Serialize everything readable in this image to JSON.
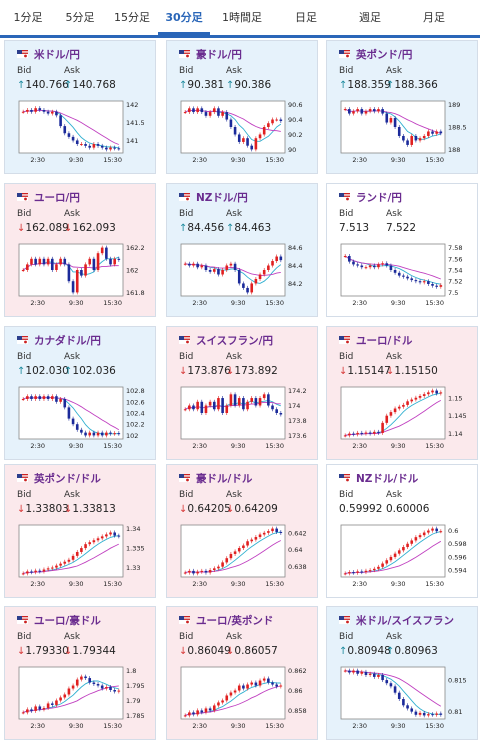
{
  "tabs": [
    "1分足",
    "5分足",
    "15分足",
    "30分足",
    "1時間足",
    "日足",
    "週足",
    "月足"
  ],
  "active_tab": "30分足",
  "bid_label": "Bid",
  "ask_label": "Ask",
  "cards": [
    {
      "name": "米ドル/円",
      "flag": "us-jp-flag-icon",
      "bid": "140.766",
      "ask": "140.768",
      "dir": "up",
      "bg": "up",
      "yticks": [
        "142",
        "141.5",
        "141"
      ],
      "xticks": [
        "2:30",
        "9:30",
        "15:30"
      ]
    },
    {
      "name": "豪ドル/円",
      "flag": "au-jp-flag-icon",
      "bid": "90.381",
      "ask": "90.386",
      "dir": "up",
      "bg": "up",
      "yticks": [
        "90.6",
        "90.4",
        "90.2",
        "90"
      ],
      "xticks": [
        "2:30",
        "9:30",
        "15:30"
      ]
    },
    {
      "name": "英ポンド/円",
      "flag": "gb-jp-flag-icon",
      "bid": "188.359",
      "ask": "188.366",
      "dir": "up",
      "bg": "up",
      "yticks": [
        "189",
        "188.5",
        "188"
      ],
      "xticks": [
        "2:30",
        "9:30",
        "15:30"
      ]
    },
    {
      "name": "ユーロ/円",
      "flag": "eu-jp-flag-icon",
      "bid": "162.089",
      "ask": "162.093",
      "dir": "down",
      "bg": "down",
      "yticks": [
        "162.2",
        "162",
        "161.8"
      ],
      "xticks": [
        "2:30",
        "9:30",
        "15:30"
      ]
    },
    {
      "name": "NZドル/円",
      "flag": "nz-jp-flag-icon",
      "bid": "84.456",
      "ask": "84.463",
      "dir": "up",
      "bg": "up",
      "yticks": [
        "84.6",
        "84.4",
        "84.2"
      ],
      "xticks": [
        "2:30",
        "9:30",
        "15:30"
      ]
    },
    {
      "name": "ランド/円",
      "flag": "za-jp-flag-icon",
      "bid": "7.513",
      "ask": "7.522",
      "dir": "none",
      "bg": "neutral",
      "yticks": [
        "7.58",
        "7.56",
        "7.54",
        "7.52",
        "7.5"
      ],
      "xticks": [
        "2:30",
        "9:30",
        "15:30"
      ]
    },
    {
      "name": "カナダドル/円",
      "flag": "ca-jp-flag-icon",
      "bid": "102.030",
      "ask": "102.036",
      "dir": "up",
      "bg": "up",
      "yticks": [
        "102.8",
        "102.6",
        "102.4",
        "102.2",
        "102"
      ],
      "xticks": [
        "2:30",
        "9:30",
        "15:30"
      ]
    },
    {
      "name": "スイスフラン/円",
      "flag": "ch-jp-flag-icon",
      "bid": "173.876",
      "ask": "173.892",
      "dir": "down",
      "bg": "down",
      "yticks": [
        "174.2",
        "174",
        "173.8",
        "173.6"
      ],
      "xticks": [
        "2:30",
        "9:30",
        "15:30"
      ]
    },
    {
      "name": "ユーロ/ドル",
      "flag": "eu-us-flag-icon",
      "bid": "1.15147",
      "ask": "1.15150",
      "dir": "down",
      "bg": "down",
      "yticks": [
        "1.15",
        "1.145",
        "1.14"
      ],
      "xticks": [
        "2:30",
        "9:30",
        "15:30"
      ]
    },
    {
      "name": "英ポンド/ドル",
      "flag": "gb-us-flag-icon",
      "bid": "1.33803",
      "ask": "1.33813",
      "dir": "down",
      "bg": "down",
      "yticks": [
        "1.34",
        "1.335",
        "1.33"
      ],
      "xticks": [
        "2:30",
        "9:30",
        "15:30"
      ]
    },
    {
      "name": "豪ドル/ドル",
      "flag": "au-us-flag-icon",
      "bid": "0.64205",
      "ask": "0.64209",
      "dir": "down",
      "bg": "down",
      "yticks": [
        "0.642",
        "0.64",
        "0.638"
      ],
      "xticks": [
        "2:30",
        "9:30",
        "15:30"
      ]
    },
    {
      "name": "NZドル/ドル",
      "flag": "nz-us-flag-icon",
      "bid": "0.59992",
      "ask": "0.60006",
      "dir": "none",
      "bg": "neutral",
      "yticks": [
        "0.6",
        "0.598",
        "0.596",
        "0.594"
      ],
      "xticks": [
        "2:30",
        "9:30",
        "15:30"
      ]
    },
    {
      "name": "ユーロ/豪ドル",
      "flag": "eu-au-flag-icon",
      "bid": "1.79330",
      "ask": "1.79344",
      "dir": "down",
      "bg": "down",
      "yticks": [
        "1.8",
        "1.795",
        "1.79",
        "1.785"
      ],
      "xticks": [
        "2:30",
        "9:30",
        "15:30"
      ]
    },
    {
      "name": "ユーロ/英ポンド",
      "flag": "eu-gb-flag-icon",
      "bid": "0.86049",
      "ask": "0.86057",
      "dir": "down",
      "bg": "down",
      "yticks": [
        "0.862",
        "0.86",
        "0.858"
      ],
      "xticks": [
        "2:30",
        "9:30",
        "15:30"
      ]
    },
    {
      "name": "米ドル/スイスフラン",
      "flag": "us-ch-flag-icon",
      "bid": "0.80948",
      "ask": "0.80963",
      "dir": "up",
      "bg": "up",
      "yticks": [
        "0.815",
        "0.81"
      ],
      "xticks": [
        "2:30",
        "9:30",
        "15:30"
      ]
    }
  ],
  "colors": {
    "up": "#1d8a9e",
    "down": "#d83a3a",
    "candle_up": "#e02020",
    "candle_down": "#1b2a9a",
    "ma1": "#c040c0",
    "ma2": "#30b0d0"
  },
  "chart_data": [
    {
      "type": "line",
      "x": [
        0,
        1,
        2,
        3,
        4,
        5,
        6,
        7,
        8,
        9,
        10,
        11,
        12,
        13,
        14,
        15,
        16,
        17,
        18,
        19,
        20,
        21,
        22,
        23
      ],
      "series": [
        {
          "values": [
            141.8,
            141.85,
            141.8,
            141.9,
            141.85,
            141.8,
            141.75,
            141.8,
            141.7,
            141.4,
            141.2,
            141.1,
            141.0,
            140.9,
            140.9,
            140.85,
            140.8,
            140.9,
            140.85,
            140.8,
            140.75,
            140.8,
            140.78,
            140.77
          ]
        }
      ]
    },
    {
      "type": "line",
      "x": [
        0,
        1,
        2,
        3,
        4,
        5,
        6,
        7,
        8,
        9,
        10,
        11,
        12,
        13,
        14,
        15,
        16,
        17,
        18,
        19,
        20,
        21,
        22,
        23
      ],
      "series": [
        {
          "values": [
            90.5,
            90.55,
            90.5,
            90.55,
            90.5,
            90.45,
            90.5,
            90.55,
            90.45,
            90.5,
            90.4,
            90.3,
            90.2,
            90.1,
            90.15,
            90.05,
            90.0,
            90.15,
            90.2,
            90.3,
            90.35,
            90.4,
            90.4,
            90.38
          ]
        }
      ]
    },
    {
      "type": "line",
      "x": [
        0,
        1,
        2,
        3,
        4,
        5,
        6,
        7,
        8,
        9,
        10,
        11,
        12,
        13,
        14,
        15,
        16,
        17,
        18,
        19,
        20,
        21,
        22,
        23
      ],
      "series": [
        {
          "values": [
            188.9,
            188.8,
            188.85,
            188.9,
            188.8,
            188.85,
            188.9,
            188.85,
            188.9,
            188.8,
            188.6,
            188.7,
            188.5,
            188.3,
            188.2,
            188.1,
            188.3,
            188.2,
            188.25,
            188.3,
            188.4,
            188.35,
            188.4,
            188.36
          ]
        }
      ]
    },
    {
      "type": "line",
      "x": [
        0,
        1,
        2,
        3,
        4,
        5,
        6,
        7,
        8,
        9,
        10,
        11,
        12,
        13,
        14,
        15,
        16,
        17,
        18,
        19,
        20,
        21,
        22,
        23
      ],
      "series": [
        {
          "values": [
            162.0,
            162.05,
            162.1,
            162.05,
            162.1,
            162.05,
            162.1,
            162.0,
            162.05,
            162.1,
            162.05,
            161.9,
            161.8,
            162.0,
            161.95,
            162.05,
            162.1,
            162.0,
            162.15,
            162.2,
            162.1,
            162.05,
            162.1,
            162.09
          ]
        }
      ]
    },
    {
      "type": "line",
      "x": [
        0,
        1,
        2,
        3,
        4,
        5,
        6,
        7,
        8,
        9,
        10,
        11,
        12,
        13,
        14,
        15,
        16,
        17,
        18,
        19,
        20,
        21,
        22,
        23
      ],
      "series": [
        {
          "values": [
            84.42,
            84.4,
            84.42,
            84.38,
            84.4,
            84.35,
            84.33,
            84.36,
            84.3,
            84.35,
            84.4,
            84.42,
            84.35,
            84.2,
            84.15,
            84.1,
            84.2,
            84.25,
            84.3,
            84.35,
            84.4,
            84.45,
            84.5,
            84.46
          ]
        }
      ]
    },
    {
      "type": "line",
      "x": [
        0,
        1,
        2,
        3,
        4,
        5,
        6,
        7,
        8,
        9,
        10,
        11,
        12,
        13,
        14,
        15,
        16,
        17,
        18,
        19,
        20,
        21,
        22,
        23
      ],
      "series": [
        {
          "values": [
            7.565,
            7.555,
            7.55,
            7.548,
            7.545,
            7.545,
            7.548,
            7.545,
            7.55,
            7.552,
            7.548,
            7.54,
            7.535,
            7.53,
            7.528,
            7.525,
            7.522,
            7.52,
            7.518,
            7.52,
            7.515,
            7.512,
            7.51,
            7.513
          ]
        }
      ]
    },
    {
      "type": "line",
      "x": [
        0,
        1,
        2,
        3,
        4,
        5,
        6,
        7,
        8,
        9,
        10,
        11,
        12,
        13,
        14,
        15,
        16,
        17,
        18,
        19,
        20,
        21,
        22,
        23
      ],
      "series": [
        {
          "values": [
            102.65,
            102.7,
            102.65,
            102.7,
            102.65,
            102.7,
            102.65,
            102.7,
            102.6,
            102.65,
            102.5,
            102.3,
            102.2,
            102.1,
            102.05,
            102.0,
            102.05,
            102.0,
            102.05,
            102.0,
            102.05,
            102.03,
            102.04,
            102.03
          ]
        }
      ]
    },
    {
      "type": "line",
      "x": [
        0,
        1,
        2,
        3,
        4,
        5,
        6,
        7,
        8,
        9,
        10,
        11,
        12,
        13,
        14,
        15,
        16,
        17,
        18,
        19,
        20,
        21,
        22,
        23
      ],
      "series": [
        {
          "values": [
            173.95,
            174.0,
            173.95,
            174.05,
            173.9,
            174.0,
            174.05,
            173.95,
            174.1,
            173.9,
            174.0,
            174.15,
            174.0,
            174.1,
            173.95,
            174.05,
            174.1,
            174.0,
            174.1,
            174.15,
            174.0,
            173.95,
            173.9,
            173.88
          ]
        }
      ]
    },
    {
      "type": "line",
      "x": [
        0,
        1,
        2,
        3,
        4,
        5,
        6,
        7,
        8,
        9,
        10,
        11,
        12,
        13,
        14,
        15,
        16,
        17,
        18,
        19,
        20,
        21,
        22,
        23
      ],
      "series": [
        {
          "values": [
            1.1395,
            1.14,
            1.1398,
            1.1402,
            1.14,
            1.1403,
            1.14,
            1.1405,
            1.1402,
            1.143,
            1.145,
            1.146,
            1.147,
            1.1475,
            1.148,
            1.149,
            1.1495,
            1.15,
            1.1505,
            1.151,
            1.1515,
            1.152,
            1.1512,
            1.1515
          ]
        }
      ]
    },
    {
      "type": "line",
      "x": [
        0,
        1,
        2,
        3,
        4,
        5,
        6,
        7,
        8,
        9,
        10,
        11,
        12,
        13,
        14,
        15,
        16,
        17,
        18,
        19,
        20,
        21,
        22,
        23
      ],
      "series": [
        {
          "values": [
            1.3285,
            1.329,
            1.3288,
            1.3292,
            1.329,
            1.3295,
            1.3298,
            1.33,
            1.3305,
            1.331,
            1.3315,
            1.332,
            1.333,
            1.334,
            1.335,
            1.336,
            1.3365,
            1.337,
            1.3375,
            1.338,
            1.3385,
            1.339,
            1.3382,
            1.338
          ]
        }
      ]
    },
    {
      "type": "line",
      "x": [
        0,
        1,
        2,
        3,
        4,
        5,
        6,
        7,
        8,
        9,
        10,
        11,
        12,
        13,
        14,
        15,
        16,
        17,
        18,
        19,
        20,
        21,
        22,
        23
      ],
      "series": [
        {
          "values": [
            0.6373,
            0.6375,
            0.6372,
            0.6374,
            0.6375,
            0.6373,
            0.6376,
            0.6378,
            0.638,
            0.6385,
            0.639,
            0.6395,
            0.6398,
            0.6402,
            0.6405,
            0.641,
            0.6412,
            0.6415,
            0.6418,
            0.642,
            0.6422,
            0.6425,
            0.6421,
            0.642
          ]
        }
      ]
    },
    {
      "type": "line",
      "x": [
        0,
        1,
        2,
        3,
        4,
        5,
        6,
        7,
        8,
        9,
        10,
        11,
        12,
        13,
        14,
        15,
        16,
        17,
        18,
        19,
        20,
        21,
        22,
        23
      ],
      "series": [
        {
          "values": [
            0.5935,
            0.5937,
            0.5936,
            0.5938,
            0.5937,
            0.5939,
            0.594,
            0.5942,
            0.5945,
            0.595,
            0.5955,
            0.596,
            0.5965,
            0.597,
            0.5975,
            0.598,
            0.5985,
            0.599,
            0.5993,
            0.5997,
            0.6,
            0.6003,
            0.5999,
            0.5999
          ]
        }
      ]
    },
    {
      "type": "line",
      "x": [
        0,
        1,
        2,
        3,
        4,
        5,
        6,
        7,
        8,
        9,
        10,
        11,
        12,
        13,
        14,
        15,
        16,
        17,
        18,
        19,
        20,
        21,
        22,
        23
      ],
      "series": [
        {
          "values": [
            1.786,
            1.787,
            1.7865,
            1.788,
            1.787,
            1.7875,
            1.789,
            1.7885,
            1.79,
            1.791,
            1.792,
            1.794,
            1.795,
            1.797,
            1.798,
            1.7975,
            1.796,
            1.7955,
            1.795,
            1.794,
            1.7945,
            1.7935,
            1.793,
            1.7933
          ]
        }
      ]
    },
    {
      "type": "line",
      "x": [
        0,
        1,
        2,
        3,
        4,
        5,
        6,
        7,
        8,
        9,
        10,
        11,
        12,
        13,
        14,
        15,
        16,
        17,
        18,
        19,
        20,
        21,
        22,
        23
      ],
      "series": [
        {
          "values": [
            0.8575,
            0.8578,
            0.8576,
            0.858,
            0.8578,
            0.8582,
            0.858,
            0.8585,
            0.8588,
            0.859,
            0.8595,
            0.8598,
            0.86,
            0.8605,
            0.8602,
            0.8606,
            0.8608,
            0.8605,
            0.861,
            0.8612,
            0.8608,
            0.8606,
            0.8604,
            0.8605
          ]
        }
      ]
    },
    {
      "type": "line",
      "x": [
        0,
        1,
        2,
        3,
        4,
        5,
        6,
        7,
        8,
        9,
        10,
        11,
        12,
        13,
        14,
        15,
        16,
        17,
        18,
        19,
        20,
        21,
        22,
        23
      ],
      "series": [
        {
          "values": [
            0.8165,
            0.8162,
            0.8165,
            0.816,
            0.8163,
            0.8158,
            0.816,
            0.8155,
            0.8158,
            0.815,
            0.8145,
            0.814,
            0.813,
            0.812,
            0.811,
            0.8105,
            0.81,
            0.8095,
            0.8098,
            0.8094,
            0.8096,
            0.8095,
            0.8097,
            0.8095
          ]
        }
      ]
    }
  ]
}
